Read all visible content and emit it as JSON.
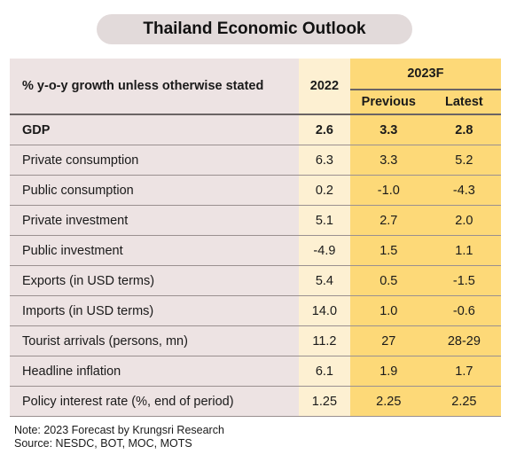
{
  "title": "Thailand Economic Outlook",
  "header": {
    "label": "% y-o-y  growth unless otherwise stated",
    "year_actual": "2022",
    "year_forecast": "2023F",
    "previous": "Previous",
    "latest": "Latest"
  },
  "rows": [
    {
      "label": "GDP",
      "v2022": "2.6",
      "previous": "3.3",
      "latest": "2.8"
    },
    {
      "label": "Private consumption",
      "v2022": "6.3",
      "previous": "3.3",
      "latest": "5.2"
    },
    {
      "label": "Public consumption",
      "v2022": "0.2",
      "previous": "-1.0",
      "latest": "-4.3"
    },
    {
      "label": "Private investment",
      "v2022": "5.1",
      "previous": "2.7",
      "latest": "2.0"
    },
    {
      "label": "Public investment",
      "v2022": "-4.9",
      "previous": "1.5",
      "latest": "1.1"
    },
    {
      "label": "Exports (in USD terms)",
      "v2022": "5.4",
      "previous": "0.5",
      "latest": "-1.5"
    },
    {
      "label": "Imports (in USD terms)",
      "v2022": "14.0",
      "previous": "1.0",
      "latest": "-0.6"
    },
    {
      "label": "Tourist arrivals (persons, mn)",
      "v2022": "11.2",
      "previous": "27",
      "latest": "28-29"
    },
    {
      "label": "Headline inflation",
      "v2022": "6.1",
      "previous": "1.9",
      "latest": "1.7"
    },
    {
      "label": "Policy interest rate (%, end of period)",
      "v2022": "1.25",
      "previous": "2.25",
      "latest": "2.25"
    }
  ],
  "note": "Note: 2023 Forecast by Krungsri Research",
  "source": "Source: NESDC, BOT, MOC, MOTS",
  "colors": {
    "label_bg": "#ede3e3",
    "actual_bg": "#fdf0d2",
    "forecast_bg": "#fdd978",
    "title_pill": "#e2dada"
  }
}
